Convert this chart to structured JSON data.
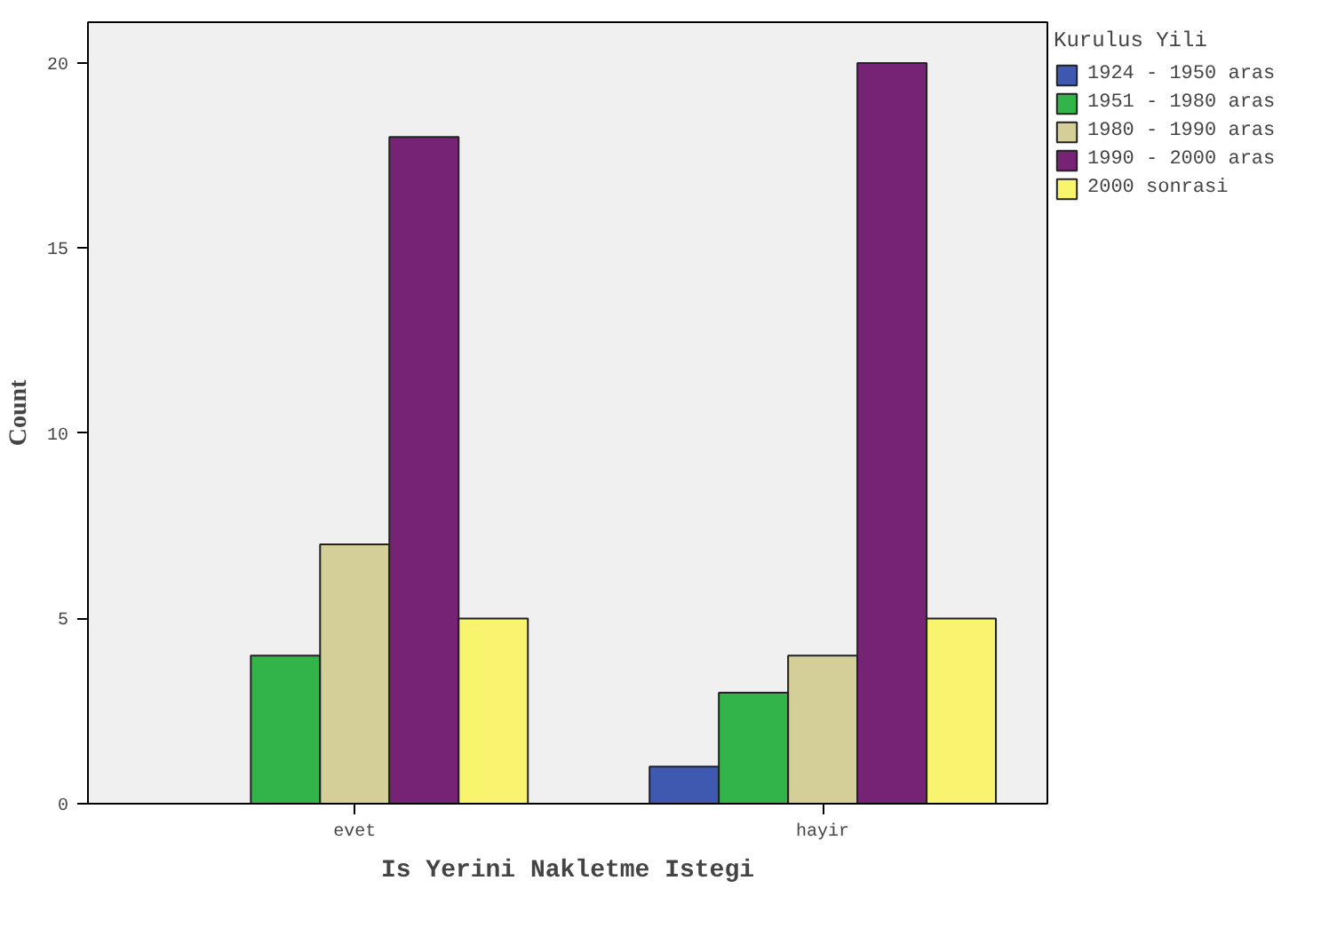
{
  "chart_data": {
    "type": "bar",
    "xlabel": "Is Yerini Nakletme Istegi",
    "ylabel": "Count",
    "legend_title": "Kurulus Yili",
    "categories": [
      "evet",
      "hayir"
    ],
    "series": [
      {
        "name": "1924 - 1950 aras",
        "color": "#3f58b0",
        "values": [
          null,
          1
        ]
      },
      {
        "name": "1951 - 1980 aras",
        "color": "#33b449",
        "values": [
          4,
          3
        ]
      },
      {
        "name": "1980 - 1990 aras",
        "color": "#d4cf98",
        "values": [
          7,
          4
        ]
      },
      {
        "name": "1990 - 2000 aras",
        "color": "#772375",
        "values": [
          18,
          20
        ]
      },
      {
        "name": "2000 sonrasi",
        "color": "#f8f46e",
        "values": [
          5,
          5
        ]
      }
    ],
    "ylim": [
      0,
      21.1
    ],
    "yticks": [
      0,
      5,
      10,
      15,
      20
    ],
    "grid": false,
    "legend": "right"
  }
}
